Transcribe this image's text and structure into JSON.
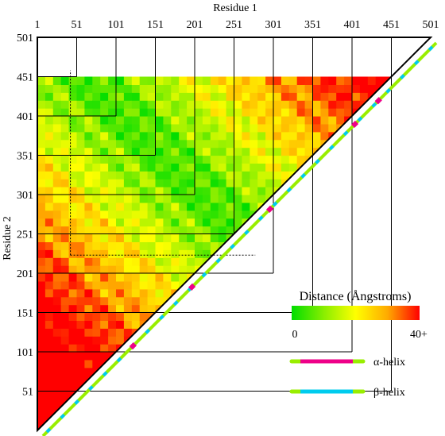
{
  "chart_data": {
    "type": "heatmap",
    "subtype": "triangular residue-residue distance map",
    "xlabel": "Residue 1",
    "ylabel": "Residue 2",
    "x_ticks": [
      "1",
      "51",
      "101",
      "151",
      "201",
      "251",
      "301",
      "351",
      "401",
      "451",
      "501"
    ],
    "y_ticks": [
      "51",
      "101",
      "151",
      "201",
      "251",
      "301",
      "351",
      "401",
      "451",
      "501"
    ],
    "xlim": [
      1,
      501
    ],
    "ylim": [
      1,
      501
    ],
    "grid": true,
    "empty_band": {
      "residue_from": 451,
      "residue_to": 495
    },
    "dashed_lines": {
      "x_residue": 43,
      "y_residue": 224
    },
    "colorbar": {
      "title": "Distance (Ångstroms)",
      "min_label": "0",
      "max_label": "40+",
      "min": 0,
      "max": 40,
      "stops": [
        "#00dd00",
        "#88ee00",
        "#ffff00",
        "#ffaa00",
        "#ff0000"
      ]
    },
    "legend": [
      {
        "label": "α-helix",
        "color": "#ee0088",
        "base_color": "#99ee00"
      },
      {
        "label": "β-helix",
        "color": "#00ccee",
        "base_color": "#99ee00"
      }
    ],
    "helix_segments": [
      {
        "type": "alpha",
        "start": 113,
        "end": 118
      },
      {
        "type": "alpha",
        "start": 188,
        "end": 193
      },
      {
        "type": "alpha",
        "start": 287,
        "end": 292
      },
      {
        "type": "alpha",
        "start": 395,
        "end": 400
      },
      {
        "type": "alpha",
        "start": 425,
        "end": 430
      }
    ],
    "beta_period": 18,
    "beta_length": 4
  }
}
